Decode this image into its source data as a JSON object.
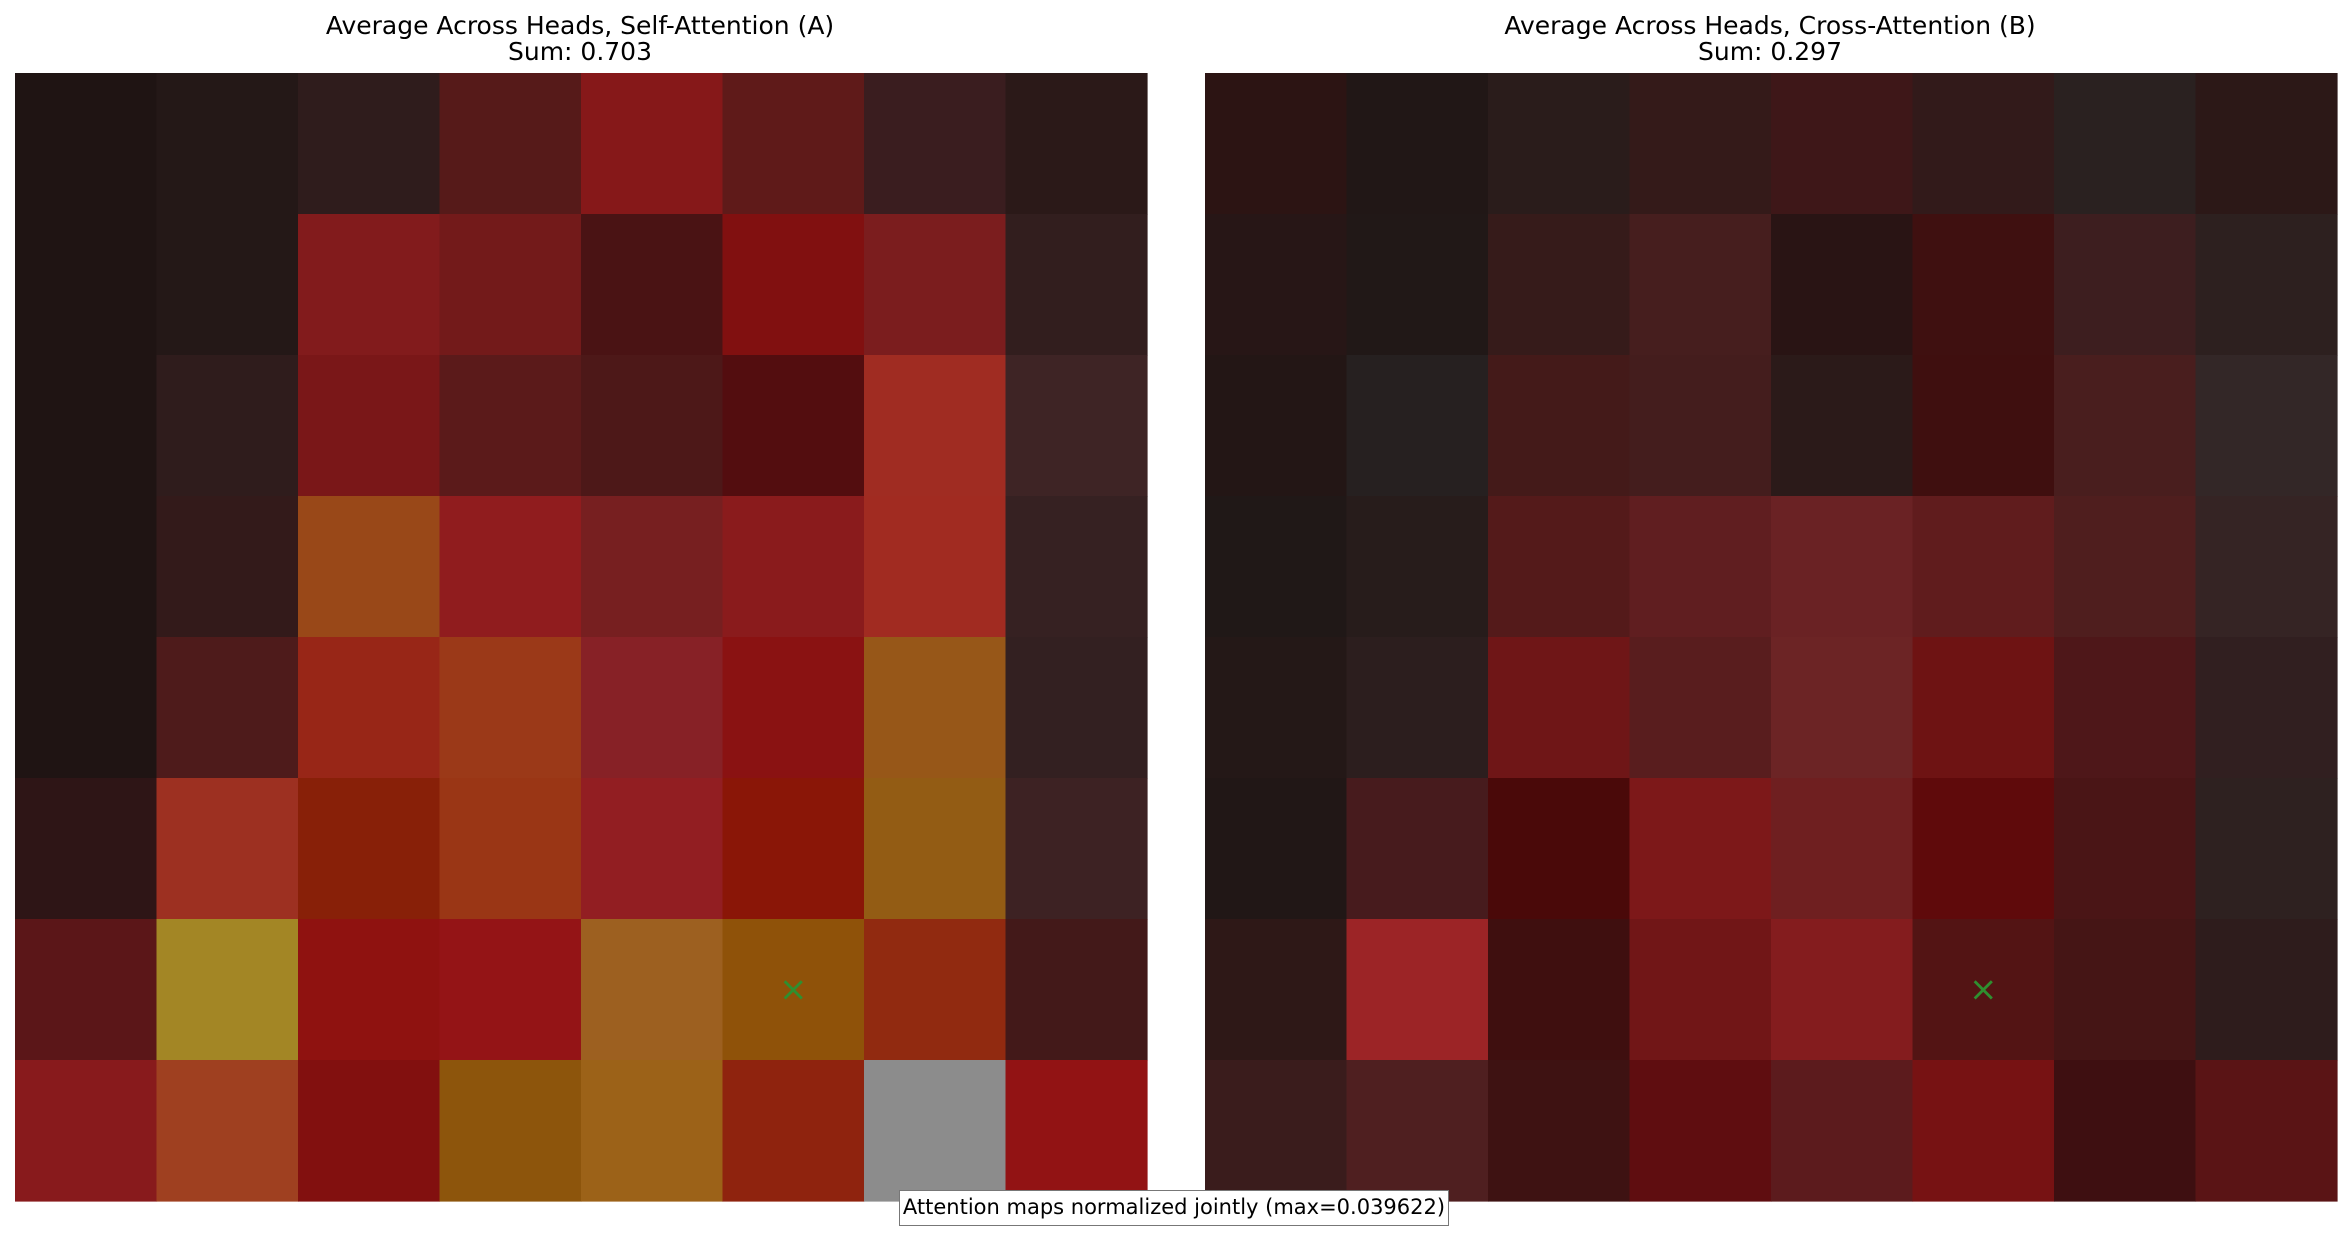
{
  "chart_data": [
    {
      "type": "heatmap",
      "title": "Average Across Heads, Self-Attention (A)",
      "subtitle": "Sum: 0.703",
      "rows": 8,
      "cols": 8,
      "marker": {
        "row": 6,
        "col": 5,
        "symbol": "×",
        "color": "#2f8f2f"
      },
      "cells": [
        [
          "#1f1413",
          "#241817",
          "#2f1c1c",
          "#561a19",
          "#861819",
          "#5f1a19",
          "#3a1d1f",
          "#2b1918"
        ],
        [
          "#1f1413",
          "#241817",
          "#821b1c",
          "#731a1a",
          "#4a1314",
          "#811010",
          "#7b1d1e",
          "#321e1e"
        ],
        [
          "#1f1413",
          "#2f1c1c",
          "#7a1718",
          "#5b1a1a",
          "#4d1818",
          "#530d0f",
          "#a02c22",
          "#3e2425"
        ],
        [
          "#1f1413",
          "#331a1a",
          "#994818",
          "#901c1e",
          "#771f20",
          "#8a1b1c",
          "#a12b21",
          "#362122"
        ],
        [
          "#1f1413",
          "#4e1b1b",
          "#982617",
          "#9b3918",
          "#872126",
          "#8a1212",
          "#975718",
          "#332021"
        ],
        [
          "#2e1516",
          "#9d3021",
          "#882008",
          "#9a3615",
          "#921e22",
          "#8a1607",
          "#935c14",
          "#3d2223"
        ],
        [
          "#5b1618",
          "#a38625",
          "#8f1210",
          "#941416",
          "#9d6020",
          "#8f5209",
          "#912a10",
          "#431919"
        ],
        [
          "#881a1c",
          "#9f4020",
          "#82100f",
          "#8d550c",
          "#9c6218",
          "#8f230e",
          "#8c8c8c",
          "#921314"
        ]
      ]
    },
    {
      "type": "heatmap",
      "title": "Average Across Heads, Cross-Attention (B)",
      "subtitle": "Sum: 0.297",
      "rows": 8,
      "cols": 8,
      "marker": {
        "row": 6,
        "col": 5,
        "symbol": "×",
        "color": "#2f8f2f"
      },
      "cells": [
        [
          "#2c1413",
          "#211716",
          "#2a1c1b",
          "#341a19",
          "#3e1718",
          "#321a1a",
          "#2a2120",
          "#2c1817"
        ],
        [
          "#271616",
          "#211817",
          "#361b1a",
          "#461e1e",
          "#291414",
          "#3f1010",
          "#3d1e1f",
          "#2d201f"
        ],
        [
          "#231615",
          "#262020",
          "#441a19",
          "#441d1d",
          "#2b1a19",
          "#3f0f0f",
          "#491e1e",
          "#332727"
        ],
        [
          "#201817",
          "#271c1b",
          "#541a1a",
          "#601e20",
          "#6a2224",
          "#601c1d",
          "#4f1e1e",
          "#352424"
        ],
        [
          "#241817",
          "#2c1e1e",
          "#6f1617",
          "#591d1e",
          "#6c2425",
          "#6e1313",
          "#4e1719",
          "#311f20"
        ],
        [
          "#211716",
          "#471b1d",
          "#4a0909",
          "#7d1819",
          "#6f1f20",
          "#5f0a0b",
          "#4a1516",
          "#2e2120"
        ],
        [
          "#2e1817",
          "#9c2426",
          "#3f0f0f",
          "#711617",
          "#841c1e",
          "#531414",
          "#451515",
          "#2e1c1c"
        ],
        [
          "#3a1c1c",
          "#4f1f20",
          "#3e1212",
          "#5f0d10",
          "#5c1b1d",
          "#771213",
          "#3e0f11",
          "#5a1415"
        ]
      ]
    }
  ],
  "footer": {
    "label": "Attention maps normalized jointly (max=0.039622)"
  }
}
